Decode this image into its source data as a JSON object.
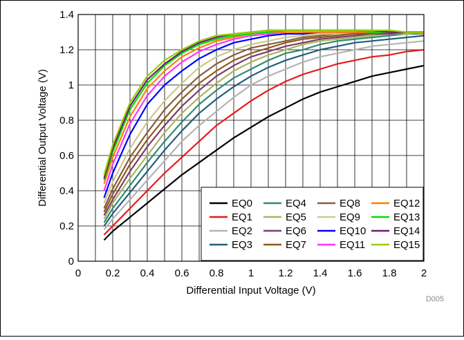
{
  "chart_data": {
    "type": "line",
    "title": "",
    "xlabel": "Differential Input Voltage (V)",
    "ylabel": "Differential Output Voltage (V)",
    "xlim": [
      0,
      2
    ],
    "ylim": [
      0,
      1.4
    ],
    "x_ticks": [
      "0",
      "0.2",
      "0.4",
      "0.6",
      "0.8",
      "1",
      "1.2",
      "1.4",
      "1.6",
      "1.8",
      "2"
    ],
    "y_ticks": [
      "0",
      "0.2",
      "0.4",
      "0.6",
      "0.8",
      "1",
      "1.2",
      "1.4"
    ],
    "x_tick_values": [
      0,
      0.2,
      0.4,
      0.6,
      0.8,
      1.0,
      1.2,
      1.4,
      1.6,
      1.8,
      2.0
    ],
    "y_tick_values": [
      0,
      0.2,
      0.4,
      0.6,
      0.8,
      1.0,
      1.2,
      1.4
    ],
    "grid": true,
    "legend_position": "bottom-right",
    "legend_columns": 4,
    "x": [
      0.15,
      0.2,
      0.3,
      0.4,
      0.5,
      0.6,
      0.7,
      0.8,
      0.9,
      1.0,
      1.1,
      1.2,
      1.3,
      1.4,
      1.5,
      1.6,
      1.7,
      1.8,
      1.9,
      2.0
    ],
    "series": [
      {
        "name": "EQ0",
        "color": "#000000",
        "values": [
          0.12,
          0.17,
          0.25,
          0.33,
          0.41,
          0.49,
          0.56,
          0.63,
          0.7,
          0.76,
          0.82,
          0.87,
          0.92,
          0.96,
          0.99,
          1.02,
          1.05,
          1.07,
          1.09,
          1.11
        ]
      },
      {
        "name": "EQ1",
        "color": "#e8191c",
        "values": [
          0.15,
          0.2,
          0.3,
          0.4,
          0.5,
          0.59,
          0.68,
          0.77,
          0.84,
          0.91,
          0.97,
          1.02,
          1.06,
          1.09,
          1.12,
          1.14,
          1.16,
          1.17,
          1.19,
          1.2
        ]
      },
      {
        "name": "EQ2",
        "color": "#b3b3b3",
        "values": [
          0.18,
          0.24,
          0.35,
          0.46,
          0.57,
          0.68,
          0.77,
          0.85,
          0.93,
          1.0,
          1.05,
          1.09,
          1.13,
          1.16,
          1.18,
          1.2,
          1.22,
          1.23,
          1.24,
          1.25
        ]
      },
      {
        "name": "EQ3",
        "color": "#1f5f7a",
        "values": [
          0.2,
          0.27,
          0.39,
          0.51,
          0.63,
          0.74,
          0.84,
          0.92,
          0.99,
          1.05,
          1.1,
          1.14,
          1.17,
          1.2,
          1.22,
          1.24,
          1.25,
          1.26,
          1.27,
          1.28
        ]
      },
      {
        "name": "EQ4",
        "color": "#2e8b6e",
        "values": [
          0.22,
          0.3,
          0.43,
          0.56,
          0.68,
          0.79,
          0.89,
          0.97,
          1.04,
          1.09,
          1.14,
          1.18,
          1.2,
          1.23,
          1.25,
          1.26,
          1.27,
          1.28,
          1.29,
          1.29
        ]
      },
      {
        "name": "EQ5",
        "color": "#aab35c",
        "values": [
          0.24,
          0.33,
          0.47,
          0.6,
          0.73,
          0.84,
          0.93,
          1.01,
          1.08,
          1.13,
          1.17,
          1.2,
          1.23,
          1.25,
          1.26,
          1.27,
          1.28,
          1.29,
          1.29,
          1.3
        ]
      },
      {
        "name": "EQ6",
        "color": "#7a3b6e",
        "values": [
          0.26,
          0.35,
          0.51,
          0.65,
          0.77,
          0.88,
          0.97,
          1.05,
          1.11,
          1.16,
          1.19,
          1.22,
          1.24,
          1.26,
          1.27,
          1.28,
          1.29,
          1.29,
          1.3,
          1.3
        ]
      },
      {
        "name": "EQ7",
        "color": "#8b5a1a",
        "values": [
          0.28,
          0.38,
          0.55,
          0.69,
          0.81,
          0.92,
          1.01,
          1.08,
          1.14,
          1.18,
          1.21,
          1.24,
          1.26,
          1.27,
          1.28,
          1.29,
          1.29,
          1.3,
          1.3,
          1.3
        ]
      },
      {
        "name": "EQ8",
        "color": "#8b5a3c",
        "values": [
          0.3,
          0.41,
          0.59,
          0.73,
          0.86,
          0.96,
          1.05,
          1.12,
          1.17,
          1.21,
          1.23,
          1.25,
          1.27,
          1.28,
          1.29,
          1.29,
          1.3,
          1.3,
          1.3,
          1.3
        ]
      },
      {
        "name": "EQ9",
        "color": "#c9c98a",
        "values": [
          0.33,
          0.45,
          0.64,
          0.79,
          0.91,
          1.01,
          1.1,
          1.16,
          1.2,
          1.23,
          1.25,
          1.27,
          1.28,
          1.29,
          1.29,
          1.3,
          1.3,
          1.3,
          1.3,
          1.3
        ]
      },
      {
        "name": "EQ10",
        "color": "#0000ff",
        "values": [
          0.36,
          0.5,
          0.72,
          0.89,
          1.0,
          1.08,
          1.15,
          1.2,
          1.24,
          1.26,
          1.28,
          1.29,
          1.29,
          1.3,
          1.3,
          1.3,
          1.3,
          1.3,
          1.3,
          1.3
        ]
      },
      {
        "name": "EQ11",
        "color": "#ff33ff",
        "values": [
          0.4,
          0.55,
          0.78,
          0.94,
          1.05,
          1.13,
          1.19,
          1.23,
          1.26,
          1.28,
          1.29,
          1.3,
          1.3,
          1.3,
          1.3,
          1.3,
          1.3,
          1.3,
          1.3,
          1.29
        ]
      },
      {
        "name": "EQ12",
        "color": "#ff7f00",
        "values": [
          0.44,
          0.59,
          0.82,
          0.98,
          1.08,
          1.16,
          1.21,
          1.25,
          1.27,
          1.29,
          1.3,
          1.3,
          1.3,
          1.3,
          1.3,
          1.3,
          1.3,
          1.3,
          1.3,
          1.29
        ]
      },
      {
        "name": "EQ13",
        "color": "#00e000",
        "values": [
          0.46,
          0.62,
          0.86,
          1.01,
          1.11,
          1.18,
          1.23,
          1.26,
          1.28,
          1.29,
          1.3,
          1.31,
          1.31,
          1.31,
          1.31,
          1.31,
          1.3,
          1.3,
          1.3,
          1.3
        ]
      },
      {
        "name": "EQ14",
        "color": "#6a1f6e",
        "values": [
          0.47,
          0.64,
          0.88,
          1.03,
          1.12,
          1.19,
          1.24,
          1.27,
          1.29,
          1.3,
          1.31,
          1.31,
          1.31,
          1.31,
          1.31,
          1.31,
          1.31,
          1.3,
          1.3,
          1.3
        ]
      },
      {
        "name": "EQ15",
        "color": "#99cc00",
        "values": [
          0.49,
          0.66,
          0.9,
          1.05,
          1.14,
          1.2,
          1.25,
          1.28,
          1.29,
          1.3,
          1.31,
          1.31,
          1.31,
          1.31,
          1.31,
          1.31,
          1.31,
          1.31,
          1.3,
          1.3
        ]
      }
    ],
    "footnote": "D005"
  }
}
